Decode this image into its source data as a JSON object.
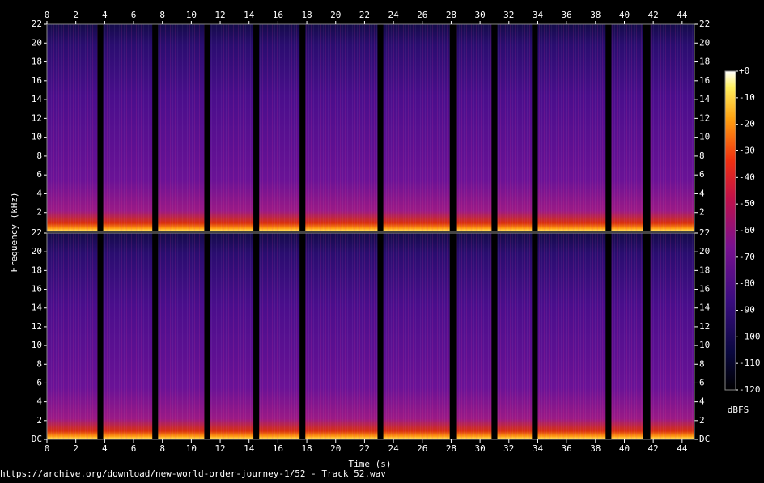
{
  "chart_data": {
    "type": "spectrogram",
    "x_label": "Time (s)",
    "y_label": "Frequency (kHz)",
    "xlim": [
      0,
      44.85
    ],
    "xticks": [
      0,
      2,
      4,
      6,
      8,
      10,
      12,
      14,
      16,
      18,
      20,
      22,
      24,
      26,
      28,
      30,
      32,
      34,
      36,
      38,
      40,
      42,
      44
    ],
    "channels": [
      {
        "ylim": [
          0,
          22
        ],
        "yticks": [
          2,
          4,
          6,
          8,
          10,
          12,
          14,
          16,
          18,
          20,
          22
        ]
      },
      {
        "ylim": [
          0,
          22
        ],
        "yticks": [
          {
            "value": 0,
            "label": "DC"
          },
          2,
          4,
          6,
          8,
          10,
          12,
          14,
          16,
          18,
          20,
          22
        ]
      }
    ],
    "silent_intervals": [
      [
        3.5,
        3.9
      ],
      [
        7.3,
        7.7
      ],
      [
        10.9,
        11.3
      ],
      [
        14.3,
        14.7
      ],
      [
        17.5,
        17.9
      ],
      [
        22.9,
        23.3
      ],
      [
        27.9,
        28.4
      ],
      [
        30.8,
        31.2
      ],
      [
        33.6,
        34.0
      ],
      [
        38.7,
        39.1
      ],
      [
        41.3,
        41.8
      ]
    ],
    "colorbar": {
      "label": "dBFS",
      "lim": [
        -120,
        0
      ],
      "ticks": [
        {
          "value": 0,
          "label": "+0"
        },
        -10,
        -20,
        -30,
        -40,
        -50,
        -60,
        -70,
        -80,
        -90,
        -100,
        -110,
        -120
      ]
    }
  },
  "footer": "https://archive.org/download/new-world-order-journey-1/52 - Track 52.wav"
}
